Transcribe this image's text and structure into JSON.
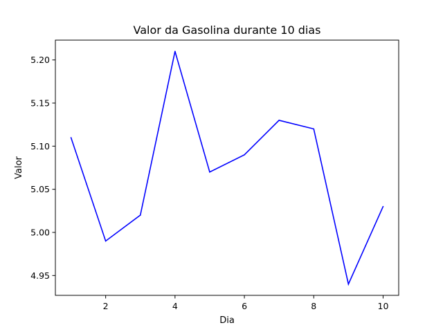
{
  "chart_data": {
    "type": "line",
    "title": "Valor da Gasolina durante 10 dias",
    "xlabel": "Dia",
    "ylabel": "Valor",
    "x": [
      1,
      2,
      3,
      4,
      5,
      6,
      7,
      8,
      9,
      10
    ],
    "series": [
      {
        "values": [
          5.11,
          4.99,
          5.02,
          5.21,
          5.07,
          5.09,
          5.13,
          5.12,
          4.94,
          5.03
        ]
      }
    ],
    "xlim": [
      0.55,
      10.45
    ],
    "ylim": [
      4.927,
      5.223
    ],
    "xticks": [
      2,
      4,
      6,
      8,
      10
    ],
    "xtick_labels": [
      "2",
      "4",
      "6",
      "8",
      "10"
    ],
    "yticks": [
      4.95,
      5.0,
      5.05,
      5.1,
      5.15,
      5.2
    ],
    "ytick_labels": [
      "4.95",
      "5.00",
      "5.05",
      "5.10",
      "5.15",
      "5.20"
    ],
    "grid": false,
    "line_color": "#0000ff"
  }
}
